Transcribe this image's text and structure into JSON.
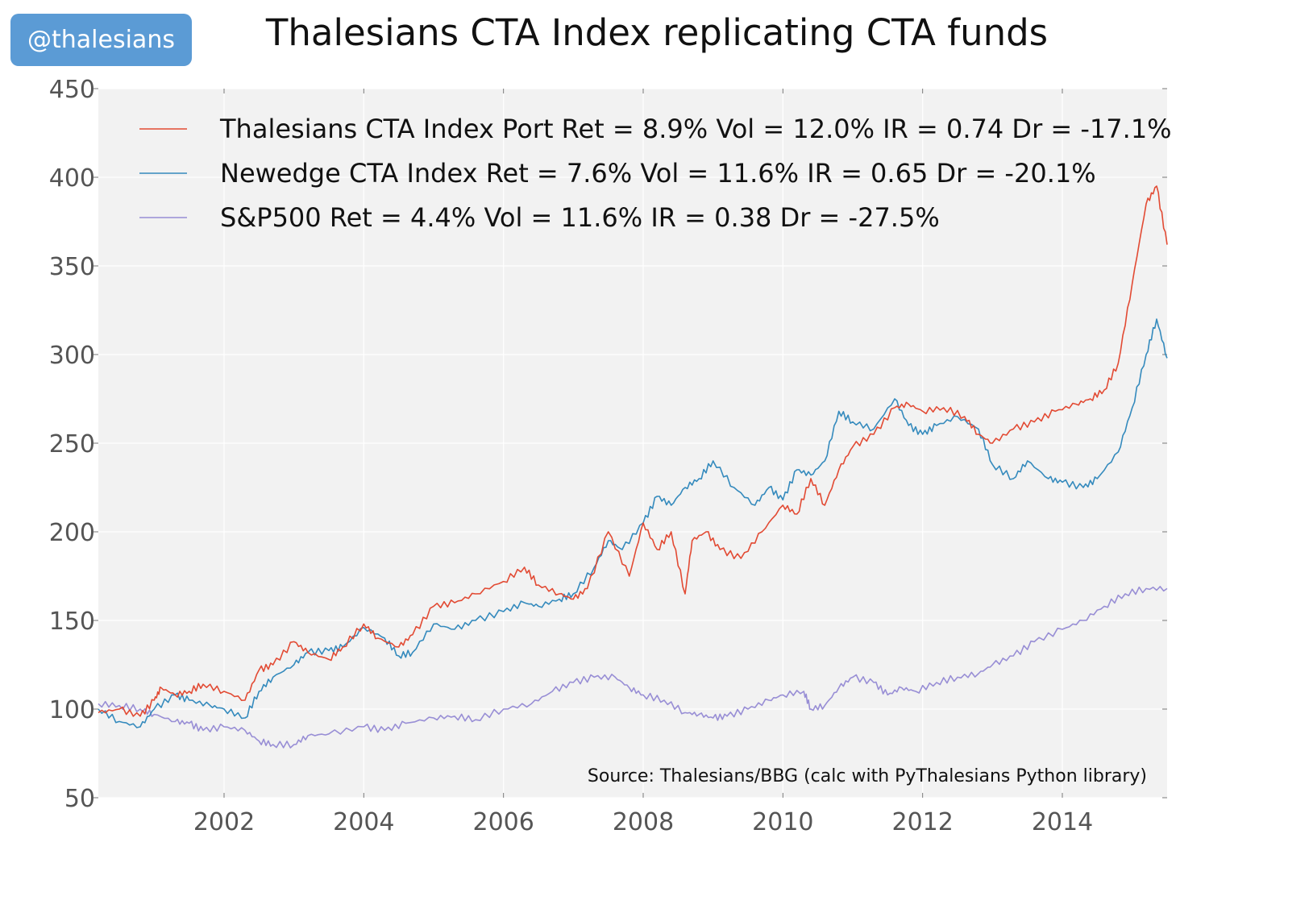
{
  "badge": {
    "label": "@thalesians"
  },
  "chart_data": {
    "type": "line",
    "title": "Thalesians CTA Index replicating CTA funds",
    "xlabel": "",
    "ylabel": "",
    "xlim": [
      2000.2,
      2015.5
    ],
    "ylim": [
      50,
      450
    ],
    "yticks": [
      50,
      100,
      150,
      200,
      250,
      300,
      350,
      400,
      450
    ],
    "xticks": [
      2002,
      2004,
      2006,
      2008,
      2010,
      2012,
      2014
    ],
    "grid": true,
    "legend": "top-left",
    "source": "Source: Thalesians/BBG (calc with PyThalesians Python library)",
    "series": [
      {
        "name": "Thalesians CTA Index Port Ret = 8.9% Vol = 12.0% IR = 0.74 Dr = -17.1%",
        "color": "#e24a33",
        "x": [
          2000.2,
          2000.5,
          2000.8,
          2001.0,
          2001.1,
          2001.3,
          2001.5,
          2001.7,
          2002.0,
          2002.3,
          2002.5,
          2002.7,
          2003.0,
          2003.2,
          2003.5,
          2003.7,
          2004.0,
          2004.2,
          2004.5,
          2004.7,
          2005.0,
          2005.3,
          2005.6,
          2006.0,
          2006.3,
          2006.5,
          2006.8,
          2007.0,
          2007.2,
          2007.5,
          2007.8,
          2008.0,
          2008.2,
          2008.4,
          2008.6,
          2008.7,
          2008.9,
          2009.1,
          2009.4,
          2009.7,
          2010.0,
          2010.2,
          2010.4,
          2010.6,
          2010.8,
          2011.0,
          2011.3,
          2011.6,
          2011.8,
          2012.0,
          2012.3,
          2012.6,
          2012.8,
          2013.0,
          2013.3,
          2013.6,
          2013.9,
          2014.2,
          2014.4,
          2014.6,
          2014.8,
          2015.0,
          2015.2,
          2015.35,
          2015.5
        ],
        "y": [
          98,
          100,
          96,
          105,
          112,
          108,
          110,
          114,
          110,
          105,
          122,
          125,
          138,
          132,
          128,
          135,
          148,
          140,
          135,
          142,
          158,
          160,
          165,
          172,
          180,
          170,
          165,
          162,
          168,
          200,
          175,
          205,
          190,
          200,
          165,
          195,
          200,
          190,
          185,
          200,
          215,
          210,
          230,
          215,
          235,
          248,
          255,
          270,
          272,
          268,
          270,
          265,
          255,
          250,
          258,
          262,
          268,
          272,
          275,
          280,
          295,
          340,
          385,
          395,
          362
        ]
      },
      {
        "name": "Newedge CTA Index Ret = 7.6% Vol = 11.6% IR = 0.65 Dr = -20.1%",
        "color": "#348abd",
        "x": [
          2000.2,
          2000.5,
          2000.8,
          2001.0,
          2001.3,
          2001.5,
          2001.8,
          2002.0,
          2002.3,
          2002.5,
          2002.7,
          2003.0,
          2003.2,
          2003.5,
          2003.7,
          2004.0,
          2004.3,
          2004.5,
          2004.7,
          2005.0,
          2005.3,
          2005.6,
          2006.0,
          2006.3,
          2006.5,
          2006.8,
          2007.0,
          2007.3,
          2007.5,
          2007.7,
          2008.0,
          2008.2,
          2008.4,
          2008.6,
          2008.8,
          2009.0,
          2009.3,
          2009.6,
          2009.8,
          2010.0,
          2010.2,
          2010.4,
          2010.6,
          2010.8,
          2011.0,
          2011.3,
          2011.6,
          2011.8,
          2012.0,
          2012.2,
          2012.5,
          2012.8,
          2013.0,
          2013.3,
          2013.5,
          2013.8,
          2014.0,
          2014.3,
          2014.5,
          2014.8,
          2015.0,
          2015.2,
          2015.35,
          2015.5
        ],
        "y": [
          100,
          93,
          90,
          100,
          108,
          105,
          102,
          100,
          95,
          110,
          118,
          125,
          132,
          133,
          135,
          146,
          140,
          130,
          132,
          148,
          145,
          150,
          155,
          160,
          158,
          162,
          165,
          180,
          195,
          190,
          205,
          220,
          215,
          225,
          230,
          240,
          225,
          215,
          225,
          218,
          235,
          232,
          240,
          268,
          262,
          258,
          275,
          260,
          255,
          260,
          265,
          258,
          238,
          230,
          240,
          230,
          228,
          225,
          230,
          245,
          270,
          300,
          320,
          298
        ]
      },
      {
        "name": "S&P500 Ret = 4.4% Vol = 11.6% IR = 0.38 Dr = -27.5%",
        "color": "#988ed5",
        "x": [
          2000.2,
          2000.5,
          2000.8,
          2001.0,
          2001.3,
          2001.5,
          2001.7,
          2002.0,
          2002.3,
          2002.5,
          2002.7,
          2003.0,
          2003.2,
          2003.5,
          2004.0,
          2004.3,
          2004.6,
          2005.0,
          2005.3,
          2005.6,
          2006.0,
          2006.4,
          2006.7,
          2007.0,
          2007.3,
          2007.6,
          2007.8,
          2008.0,
          2008.3,
          2008.6,
          2008.8,
          2009.0,
          2009.2,
          2009.5,
          2009.8,
          2010.0,
          2010.3,
          2010.4,
          2010.6,
          2010.8,
          2011.0,
          2011.3,
          2011.5,
          2011.7,
          2011.9,
          2012.2,
          2012.5,
          2012.8,
          2013.0,
          2013.3,
          2013.6,
          2014.0,
          2014.3,
          2014.6,
          2014.9,
          2015.2,
          2015.5
        ],
        "y": [
          103,
          102,
          100,
          97,
          93,
          92,
          88,
          90,
          88,
          82,
          80,
          80,
          85,
          86,
          90,
          88,
          92,
          95,
          96,
          94,
          100,
          103,
          110,
          115,
          118,
          118,
          112,
          108,
          105,
          98,
          97,
          95,
          96,
          100,
          105,
          108,
          110,
          100,
          102,
          112,
          118,
          115,
          108,
          112,
          110,
          115,
          118,
          120,
          125,
          130,
          138,
          145,
          150,
          158,
          165,
          168,
          168
        ]
      }
    ]
  }
}
